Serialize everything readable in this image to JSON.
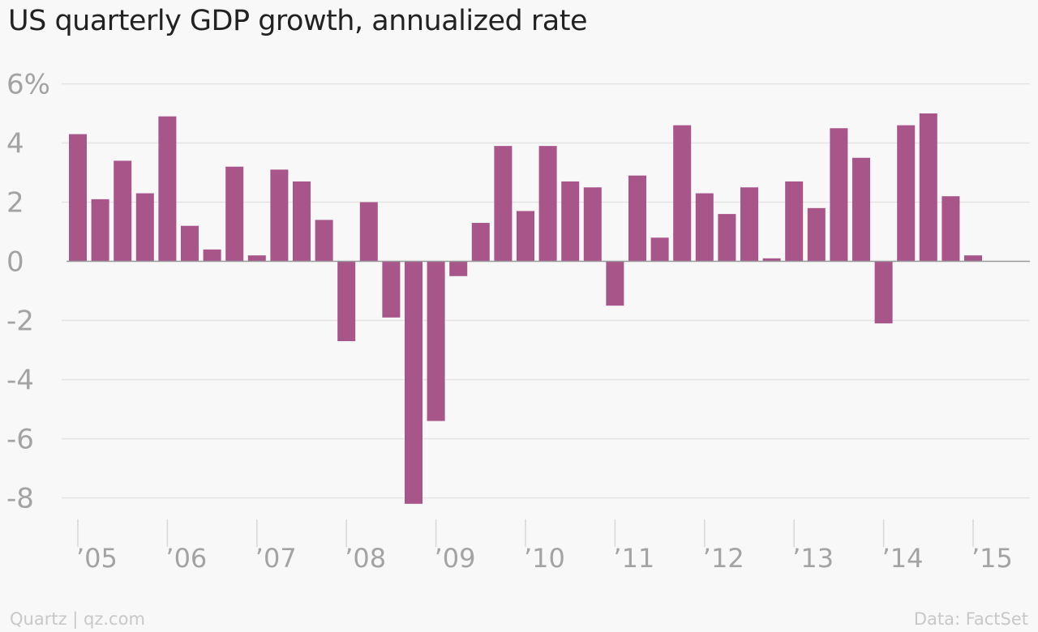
{
  "chart_data": {
    "type": "bar",
    "title": "US quarterly GDP growth, annualized rate",
    "xlabel": "",
    "ylabel": "",
    "ylim": [
      -9,
      6.5
    ],
    "y_ticks": [
      6,
      4,
      2,
      0,
      -2,
      -4,
      -6,
      -8
    ],
    "y_tick_labels": [
      "6%",
      "4",
      "2",
      "0",
      "-2",
      "-4",
      "-6",
      "-8"
    ],
    "x_tick_labels": [
      "’05",
      "’06",
      "’07",
      "’08",
      "’09",
      "’10",
      "’11",
      "’12",
      "’13",
      "’14",
      "’15"
    ],
    "grid": true,
    "bar_color": "#a8558a",
    "categories": [
      "2005 Q1",
      "2005 Q2",
      "2005 Q3",
      "2005 Q4",
      "2006 Q1",
      "2006 Q2",
      "2006 Q3",
      "2006 Q4",
      "2007 Q1",
      "2007 Q2",
      "2007 Q3",
      "2007 Q4",
      "2008 Q1",
      "2008 Q2",
      "2008 Q3",
      "2008 Q4",
      "2009 Q1",
      "2009 Q2",
      "2009 Q3",
      "2009 Q4",
      "2010 Q1",
      "2010 Q2",
      "2010 Q3",
      "2010 Q4",
      "2011 Q1",
      "2011 Q2",
      "2011 Q3",
      "2011 Q4",
      "2012 Q1",
      "2012 Q2",
      "2012 Q3",
      "2012 Q4",
      "2013 Q1",
      "2013 Q2",
      "2013 Q3",
      "2013 Q4",
      "2014 Q1",
      "2014 Q2",
      "2014 Q3",
      "2014 Q4",
      "2015 Q1"
    ],
    "values": [
      4.3,
      2.1,
      3.4,
      2.3,
      4.9,
      1.2,
      0.4,
      3.2,
      0.2,
      3.1,
      2.7,
      1.4,
      -2.7,
      2.0,
      -1.9,
      -8.2,
      -5.4,
      -0.5,
      1.3,
      3.9,
      1.7,
      3.9,
      2.7,
      2.5,
      -1.5,
      2.9,
      0.8,
      4.6,
      2.3,
      1.6,
      2.5,
      0.1,
      2.7,
      1.8,
      4.5,
      3.5,
      -2.1,
      4.6,
      5.0,
      2.2,
      0.2
    ]
  },
  "footer": {
    "source_left": "Quartz | qz.com",
    "source_right": "Data: FactSet"
  }
}
